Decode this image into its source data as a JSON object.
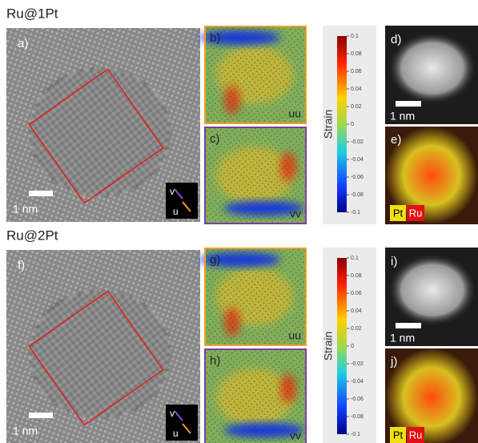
{
  "sections": [
    {
      "title": "Ru@1Pt",
      "tem": {
        "label": "a)",
        "scale_bar": "1 nm",
        "axis_v": "v",
        "axis_u": "u"
      },
      "strain_uu": {
        "label": "b)",
        "component": "uu"
      },
      "strain_vv": {
        "label": "c)",
        "component": "vv"
      },
      "colorbar": {
        "title": "Strain",
        "ticks": [
          "0.1",
          "0.08",
          "0.06",
          "0.04",
          "0.02",
          "0",
          "-0.02",
          "-0.04",
          "-0.06",
          "-0.08",
          "-0.1"
        ]
      },
      "haadf": {
        "label": "d)",
        "scale_bar": "1 nm"
      },
      "eds": {
        "label": "e)",
        "element_1": "Pt",
        "element_2": "Ru"
      }
    },
    {
      "title": "Ru@2Pt",
      "tem": {
        "label": "f)",
        "scale_bar": "1 nm",
        "axis_v": "v",
        "axis_u": "u"
      },
      "strain_uu": {
        "label": "g)",
        "component": "uu"
      },
      "strain_vv": {
        "label": "h)",
        "component": "vv"
      },
      "colorbar": {
        "title": "Strain",
        "ticks": [
          "0.1",
          "0.08",
          "0.06",
          "0.04",
          "0.02",
          "0",
          "-0.02",
          "-0.04",
          "-0.06",
          "-0.08",
          "-0.1"
        ]
      },
      "haadf": {
        "label": "i)",
        "scale_bar": "1 nm"
      },
      "eds": {
        "label": "j)",
        "element_1": "Pt",
        "element_2": "Ru"
      }
    }
  ]
}
